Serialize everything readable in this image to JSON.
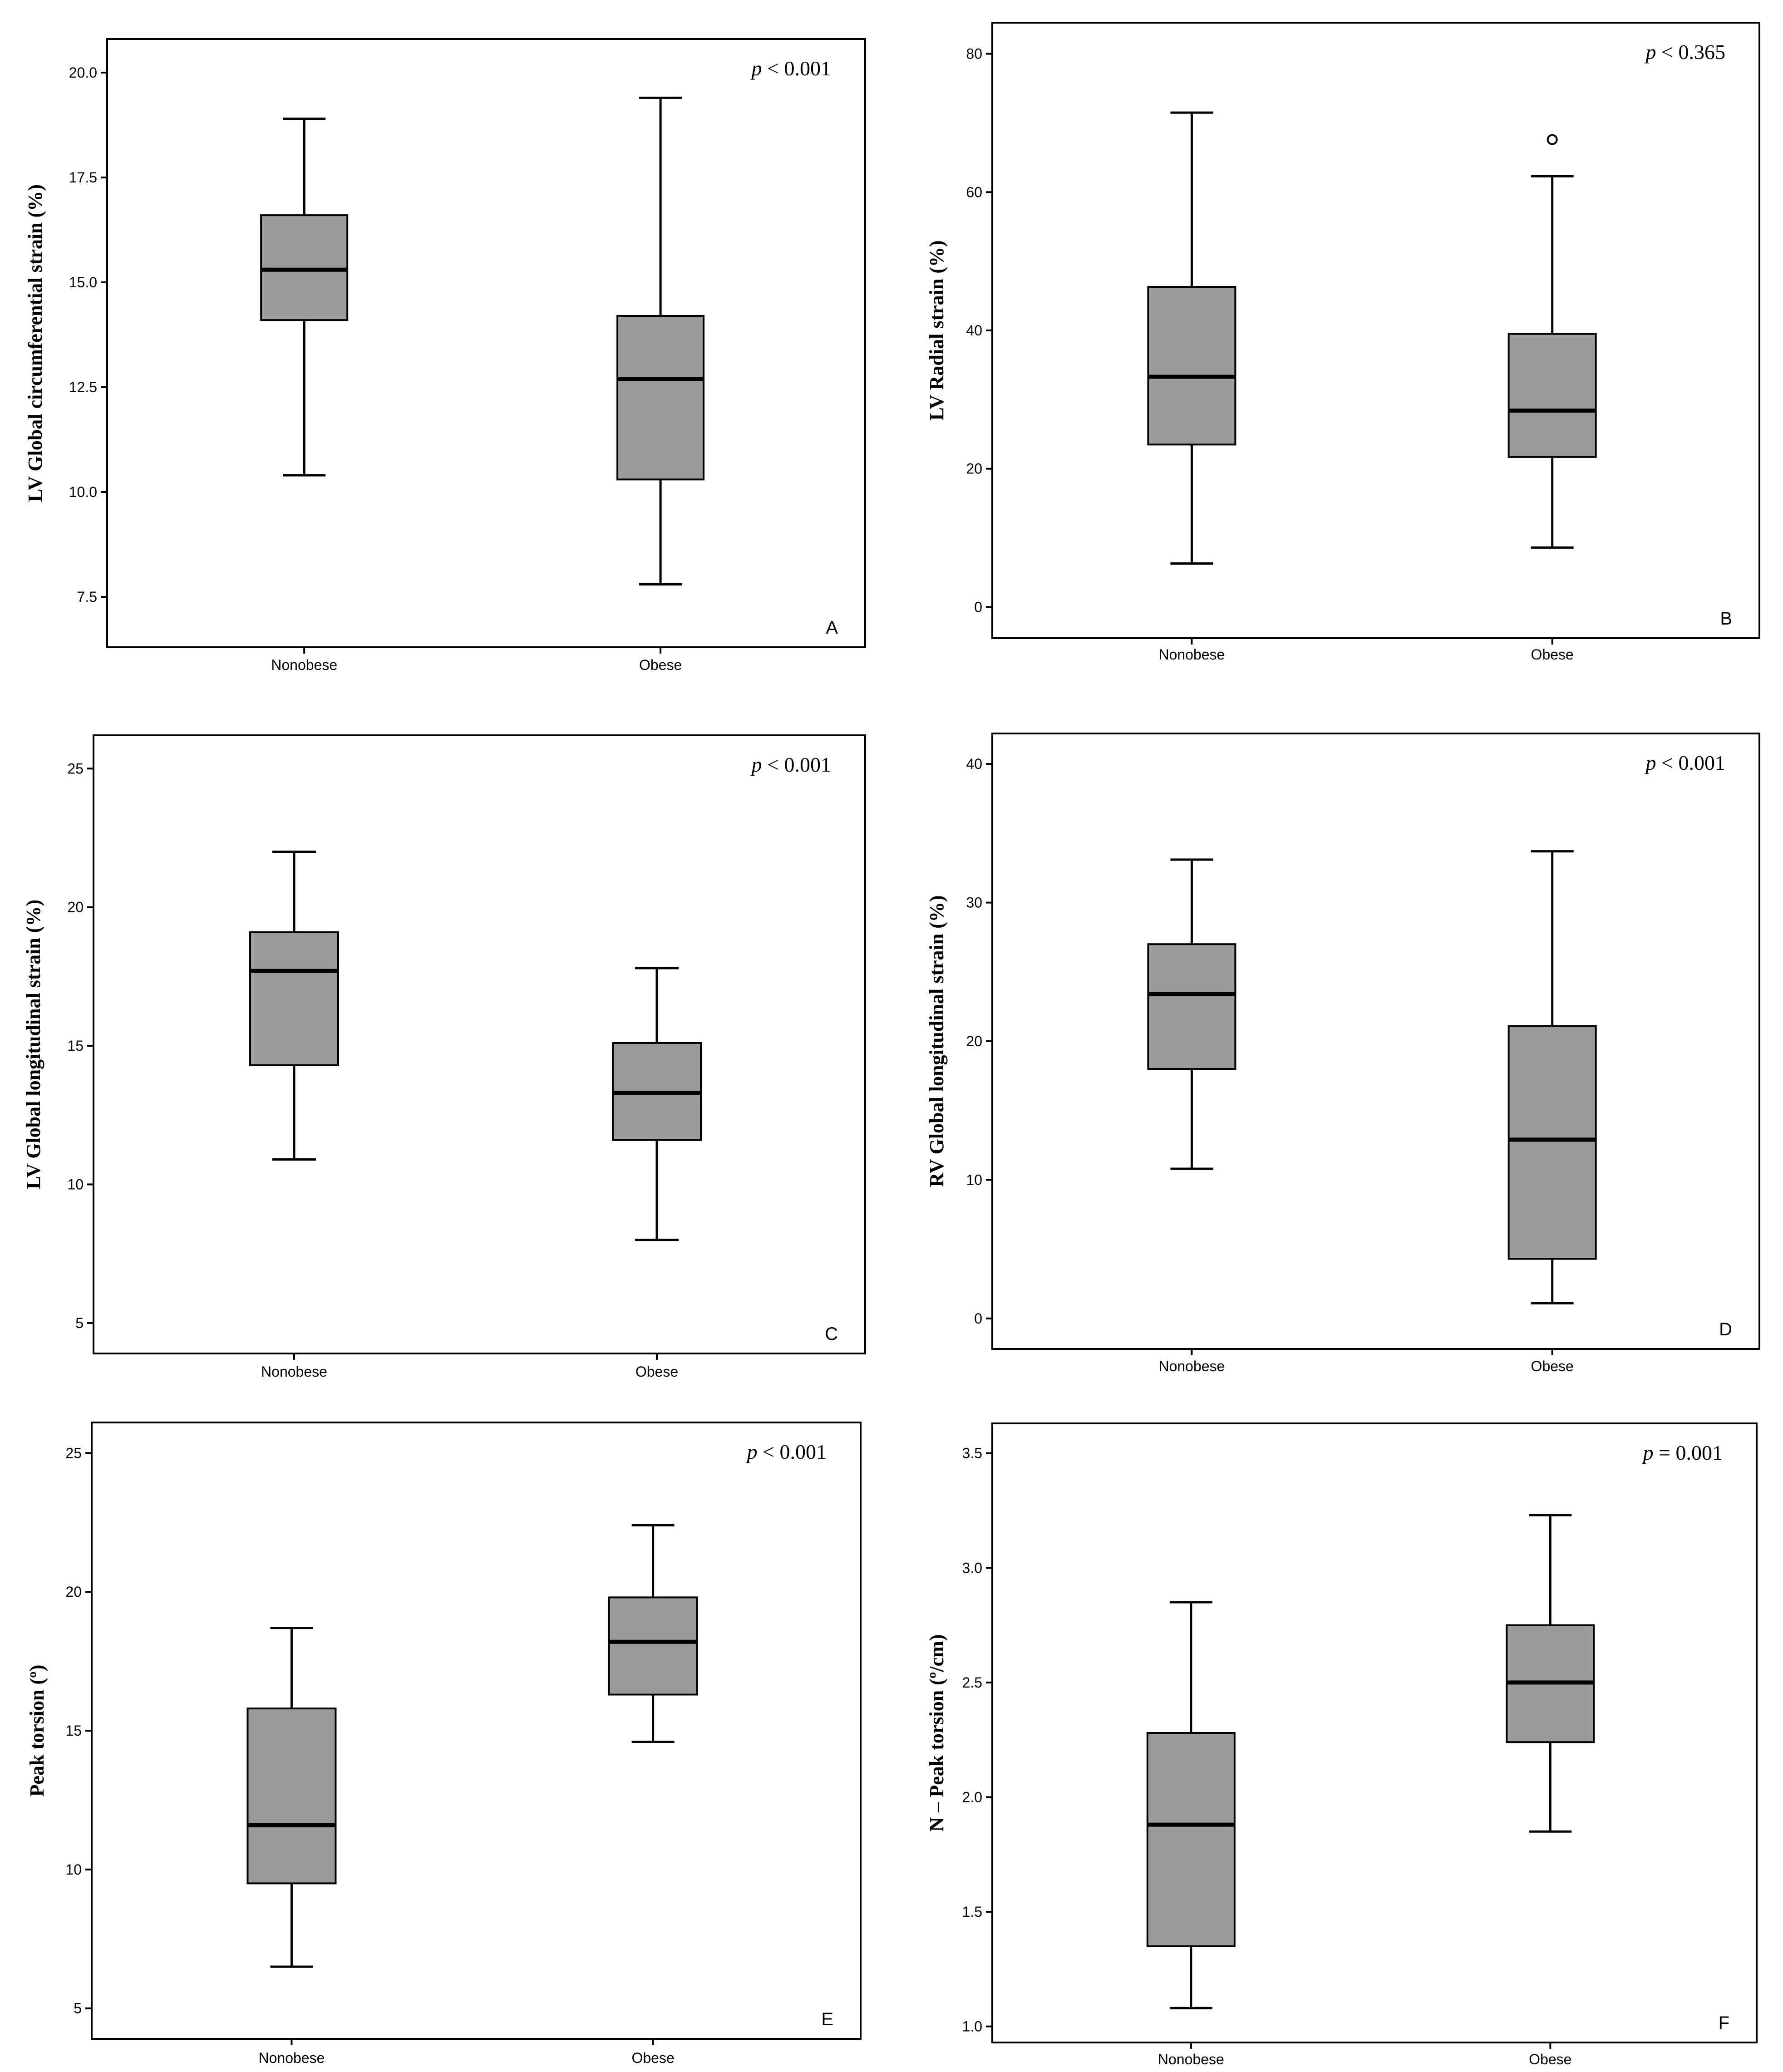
{
  "colors": {
    "box_fill": "#9b9b9b",
    "line": "#000000",
    "background": "#ffffff"
  },
  "chart_data": [
    {
      "type": "boxplot",
      "panel": "A",
      "ylabel": "LV Global circumferential strain (%)",
      "p_prefix": "p",
      "p_rest": " < 0.001",
      "categories": [
        "Nonobese",
        "Obese"
      ],
      "yticks": [
        7.5,
        10.0,
        12.5,
        15.0,
        17.5,
        20.0
      ],
      "ytick_labels": [
        "7.5",
        "10.0",
        "12.5",
        "15.0",
        "17.5",
        "20.0"
      ],
      "ylim": [
        6.3,
        20.8
      ],
      "boxes": [
        {
          "min": 10.4,
          "q1": 14.1,
          "median": 15.3,
          "q3": 16.6,
          "max": 18.9,
          "outliers": []
        },
        {
          "min": 7.8,
          "q1": 10.3,
          "median": 12.7,
          "q3": 14.2,
          "max": 19.4,
          "outliers": []
        }
      ]
    },
    {
      "type": "boxplot",
      "panel": "B",
      "ylabel": "LV Radial strain (%)",
      "p_prefix": "p",
      "p_rest": " < 0.365",
      "categories": [
        "Nonobese",
        "Obese"
      ],
      "yticks": [
        0,
        20,
        40,
        60,
        80
      ],
      "ytick_labels": [
        "0",
        "20",
        "40",
        "60",
        "80"
      ],
      "ylim": [
        -4.5,
        84.5
      ],
      "boxes": [
        {
          "min": 6.3,
          "q1": 23.5,
          "median": 33.3,
          "q3": 46.3,
          "max": 71.5,
          "outliers": []
        },
        {
          "min": 8.6,
          "q1": 21.7,
          "median": 28.4,
          "q3": 39.5,
          "max": 62.3,
          "outliers": [
            67.6
          ]
        }
      ]
    },
    {
      "type": "boxplot",
      "panel": "C",
      "ylabel": "LV Global longitudinal strain (%)",
      "p_prefix": "p",
      "p_rest": " < 0.001",
      "categories": [
        "Nonobese",
        "Obese"
      ],
      "yticks": [
        5,
        10,
        15,
        20,
        25
      ],
      "ytick_labels": [
        "5",
        "10",
        "15",
        "20",
        "25"
      ],
      "ylim": [
        3.9,
        26.2
      ],
      "boxes": [
        {
          "min": 10.9,
          "q1": 14.3,
          "median": 17.7,
          "q3": 19.1,
          "max": 22.0,
          "outliers": []
        },
        {
          "min": 8.0,
          "q1": 11.6,
          "median": 13.3,
          "q3": 15.1,
          "max": 17.8,
          "outliers": []
        }
      ]
    },
    {
      "type": "boxplot",
      "panel": "D",
      "ylabel": "RV Global longitudinal strain (%)",
      "p_prefix": "p",
      "p_rest": " < 0.001",
      "categories": [
        "Nonobese",
        "Obese"
      ],
      "yticks": [
        0,
        10,
        20,
        30,
        40
      ],
      "ytick_labels": [
        "0",
        "10",
        "20",
        "30",
        "40"
      ],
      "ylim": [
        -2.2,
        42.2
      ],
      "boxes": [
        {
          "min": 10.8,
          "q1": 18.0,
          "median": 23.4,
          "q3": 27.0,
          "max": 33.1,
          "outliers": []
        },
        {
          "min": 1.1,
          "q1": 4.3,
          "median": 12.9,
          "q3": 21.1,
          "max": 33.7,
          "outliers": []
        }
      ]
    },
    {
      "type": "boxplot",
      "panel": "E",
      "ylabel": "Peak torsion (º)",
      "p_prefix": "p",
      "p_rest": " < 0.001",
      "categories": [
        "Nonobese",
        "Obese"
      ],
      "yticks": [
        5,
        10,
        15,
        20,
        25
      ],
      "ytick_labels": [
        "5",
        "10",
        "15",
        "20",
        "25"
      ],
      "ylim": [
        3.9,
        26.1
      ],
      "boxes": [
        {
          "min": 6.5,
          "q1": 9.5,
          "median": 11.6,
          "q3": 15.8,
          "max": 18.7,
          "outliers": []
        },
        {
          "min": 14.6,
          "q1": 16.3,
          "median": 18.2,
          "q3": 19.8,
          "max": 22.4,
          "outliers": []
        }
      ]
    },
    {
      "type": "boxplot",
      "panel": "F",
      "ylabel": "N – Peak torsion (º/cm)",
      "p_prefix": "p",
      "p_rest": " = 0.001",
      "categories": [
        "Nonobese",
        "Obese"
      ],
      "yticks": [
        1.0,
        1.5,
        2.0,
        2.5,
        3.0,
        3.5
      ],
      "ytick_labels": [
        "1.0",
        "1.5",
        "2.0",
        "2.5",
        "3.0",
        "3.5"
      ],
      "ylim": [
        0.93,
        3.63
      ],
      "boxes": [
        {
          "min": 1.08,
          "q1": 1.35,
          "median": 1.88,
          "q3": 2.28,
          "max": 2.85,
          "outliers": []
        },
        {
          "min": 1.85,
          "q1": 2.24,
          "median": 2.5,
          "q3": 2.75,
          "max": 3.23,
          "outliers": []
        }
      ]
    }
  ]
}
